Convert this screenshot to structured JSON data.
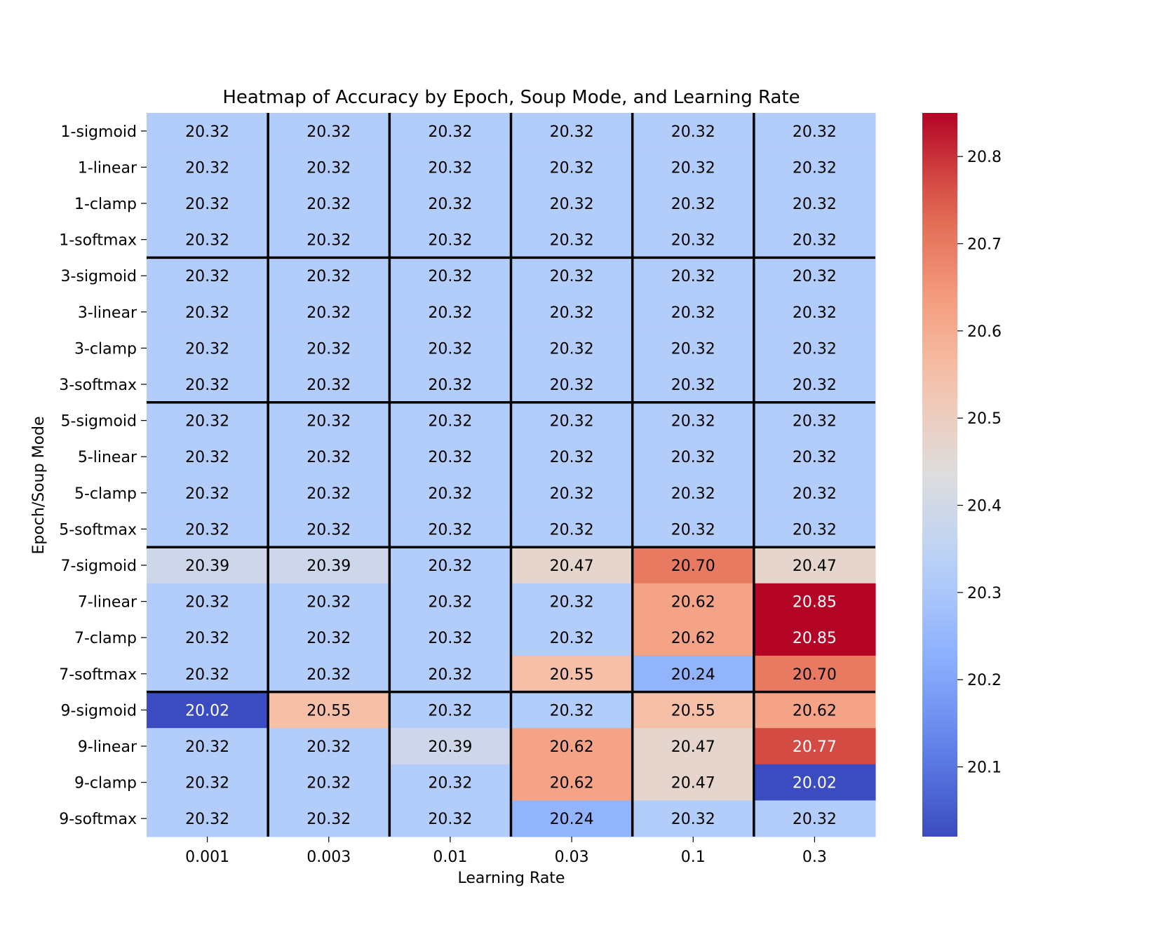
{
  "chart_data": {
    "type": "heatmap",
    "title": "Heatmap of Accuracy by Epoch, Soup Mode, and Learning Rate",
    "xlabel": "Learning Rate",
    "ylabel": "Epoch/Soup Mode",
    "x": [
      "0.001",
      "0.003",
      "0.01",
      "0.03",
      "0.1",
      "0.3"
    ],
    "y": [
      "1-sigmoid",
      "1-linear",
      "1-clamp",
      "1-softmax",
      "3-sigmoid",
      "3-linear",
      "3-clamp",
      "3-softmax",
      "5-sigmoid",
      "5-linear",
      "5-clamp",
      "5-softmax",
      "7-sigmoid",
      "7-linear",
      "7-clamp",
      "7-softmax",
      "9-sigmoid",
      "9-linear",
      "9-clamp",
      "9-softmax"
    ],
    "values": [
      [
        20.32,
        20.32,
        20.32,
        20.32,
        20.32,
        20.32
      ],
      [
        20.32,
        20.32,
        20.32,
        20.32,
        20.32,
        20.32
      ],
      [
        20.32,
        20.32,
        20.32,
        20.32,
        20.32,
        20.32
      ],
      [
        20.32,
        20.32,
        20.32,
        20.32,
        20.32,
        20.32
      ],
      [
        20.32,
        20.32,
        20.32,
        20.32,
        20.32,
        20.32
      ],
      [
        20.32,
        20.32,
        20.32,
        20.32,
        20.32,
        20.32
      ],
      [
        20.32,
        20.32,
        20.32,
        20.32,
        20.32,
        20.32
      ],
      [
        20.32,
        20.32,
        20.32,
        20.32,
        20.32,
        20.32
      ],
      [
        20.32,
        20.32,
        20.32,
        20.32,
        20.32,
        20.32
      ],
      [
        20.32,
        20.32,
        20.32,
        20.32,
        20.32,
        20.32
      ],
      [
        20.32,
        20.32,
        20.32,
        20.32,
        20.32,
        20.32
      ],
      [
        20.32,
        20.32,
        20.32,
        20.32,
        20.32,
        20.32
      ],
      [
        20.39,
        20.39,
        20.32,
        20.47,
        20.7,
        20.47
      ],
      [
        20.32,
        20.32,
        20.32,
        20.32,
        20.62,
        20.85
      ],
      [
        20.32,
        20.32,
        20.32,
        20.32,
        20.62,
        20.85
      ],
      [
        20.32,
        20.32,
        20.32,
        20.55,
        20.24,
        20.7
      ],
      [
        20.02,
        20.55,
        20.32,
        20.32,
        20.55,
        20.62
      ],
      [
        20.32,
        20.32,
        20.39,
        20.62,
        20.47,
        20.77
      ],
      [
        20.32,
        20.32,
        20.32,
        20.62,
        20.47,
        20.02
      ],
      [
        20.32,
        20.32,
        20.32,
        20.24,
        20.32,
        20.32
      ]
    ],
    "value_format": "0.00",
    "colormap": "coolwarm",
    "vmin": 20.02,
    "vmax": 20.85,
    "colorbar_ticks": [
      20.1,
      20.2,
      20.3,
      20.4,
      20.5,
      20.6,
      20.7,
      20.8
    ],
    "group_separators": {
      "rows_every": 4,
      "cols_every": 1,
      "color": "#000000"
    },
    "grid": false,
    "legend": "colorbar-right"
  }
}
